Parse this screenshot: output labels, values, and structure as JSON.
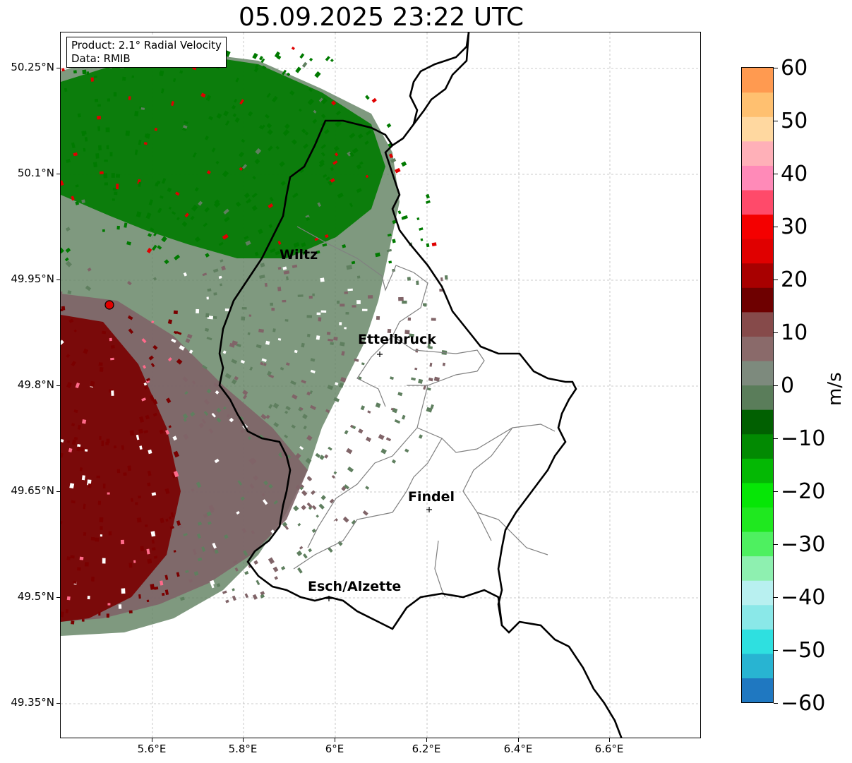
{
  "title": "05.09.2025 23:22 UTC",
  "info": {
    "product": "Product: 2.1° Radial Velocity",
    "data": "Data: RMIB"
  },
  "axes": {
    "lat_ticks": [
      "50.25°N",
      "50.1°N",
      "49.95°N",
      "49.8°N",
      "49.65°N",
      "49.5°N",
      "49.35°N"
    ],
    "lon_ticks": [
      "5.6°E",
      "5.8°E",
      "6°E",
      "6.2°E",
      "6.4°E",
      "6.6°E"
    ],
    "lon_range": [
      5.4,
      6.8
    ],
    "lat_range": [
      49.3,
      50.3
    ]
  },
  "cities": [
    {
      "name": "Wiltz",
      "lon": 5.93,
      "lat": 49.97
    },
    {
      "name": "Ettelbruck",
      "lon": 6.1,
      "lat": 49.85
    },
    {
      "name": "Findel",
      "lon": 6.21,
      "lat": 49.63
    },
    {
      "name": "Esch/Alzette",
      "lon": 5.99,
      "lat": 49.5
    }
  ],
  "radar_site": {
    "lon": 5.505,
    "lat": 49.915
  },
  "colorbar": {
    "unit": "m/s",
    "ticks": [
      "60",
      "50",
      "40",
      "30",
      "20",
      "10",
      "0",
      "−10",
      "−20",
      "−30",
      "−40",
      "−50",
      "−60"
    ],
    "min": -60,
    "max": 60,
    "colors": [
      "#1f78c1",
      "#28b4d2",
      "#2ee0e0",
      "#8ae8e8",
      "#b8f0f0",
      "#8ef0b0",
      "#4ef060",
      "#1fe81f",
      "#06e606",
      "#04b804",
      "#028a02",
      "#016001",
      "#5a7d5a",
      "#7d8a7d",
      "#8a6a6a",
      "#864a4a",
      "#6e0000",
      "#a80000",
      "#e00000",
      "#f40000",
      "#ff4a6a",
      "#ff8ab8",
      "#ffb0b8",
      "#ffd8a0",
      "#ffc070",
      "#ff9a50"
    ]
  },
  "colors": {
    "inbound_green": "#007a00",
    "outbound_red": "#7a0000",
    "near_zero_green": "#5f7f5f",
    "near_zero_red": "#806468",
    "border": "#000000",
    "canton": "#808080"
  }
}
